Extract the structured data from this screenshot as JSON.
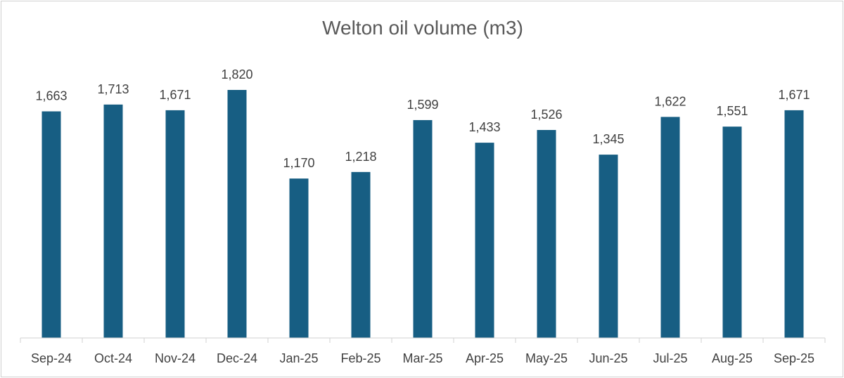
{
  "chart_data": {
    "type": "bar",
    "title": "Welton oil volume (m3)",
    "categories": [
      "Sep-24",
      "Oct-24",
      "Nov-24",
      "Dec-24",
      "Jan-25",
      "Feb-25",
      "Mar-25",
      "Apr-25",
      "May-25",
      "Jun-25",
      "Jul-25",
      "Aug-25",
      "Sep-25"
    ],
    "values": [
      1663,
      1713,
      1671,
      1820,
      1170,
      1218,
      1599,
      1433,
      1526,
      1345,
      1622,
      1551,
      1671
    ],
    "value_labels": [
      "1,663",
      "1,713",
      "1,671",
      "1,820",
      "1,170",
      "1,218",
      "1,599",
      "1,433",
      "1,526",
      "1,345",
      "1,622",
      "1,551",
      "1,671"
    ],
    "xlabel": "",
    "ylabel": "",
    "ylim": [
      0,
      1820
    ],
    "grid": false,
    "legend": "none",
    "bar_color": "#175e83",
    "axis_color": "#d0d0d0"
  }
}
